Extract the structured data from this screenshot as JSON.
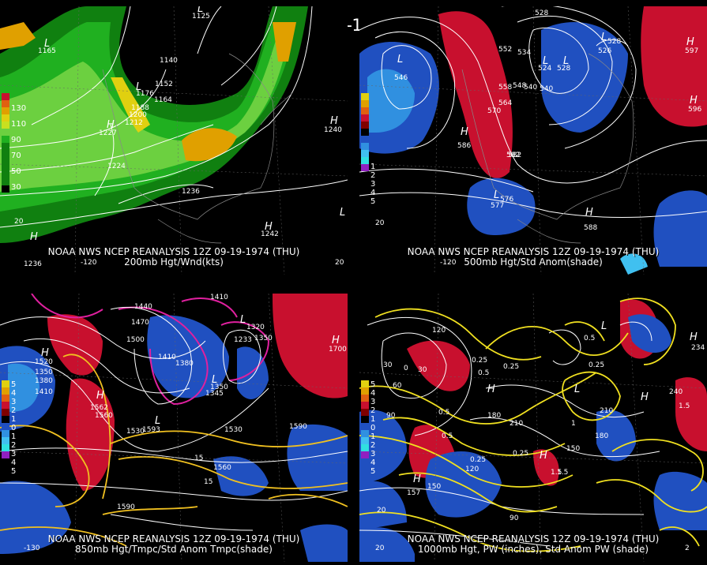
{
  "title": "12Z 09-19-1974 (THU)",
  "panels": [
    {
      "id": "p1",
      "caption1": "NOAA NWS NCEP REANALYSIS 12Z 09-19-1974 (THU)",
      "caption2": "200mb Hgt/Wnd(kts)",
      "legend_colors": [
        "#c8102e",
        "#e06010",
        "#e0a000",
        "#e0d010",
        "#c8e020",
        "#6cd040",
        "#20b020",
        "#108010"
      ],
      "legend_labels": [
        "130",
        "110",
        "90",
        "70",
        "50",
        "30"
      ],
      "contour_labels": [
        "1125",
        "1165",
        "1140",
        "1152",
        "1176",
        "1164",
        "1188",
        "1200",
        "1212",
        "1227",
        "1224",
        "1236",
        "1240",
        "1242",
        "1236",
        "20",
        "-120",
        "20"
      ],
      "highs_lows": [
        "L",
        "L",
        "L",
        "H",
        "H",
        "H",
        "L",
        "H"
      ]
    },
    {
      "id": "p2",
      "caption1": "NOAA NWS NCEP REANALYSIS 12Z 09-19-1974 (THU)",
      "caption2": "500mb Hgt/Std Anom(shade)",
      "legend_colors": [
        "#e0d010",
        "#e0a000",
        "#e06010",
        "#c8102e",
        "#800000",
        "#000000",
        "#2050c0",
        "#3090e0",
        "#40c0f0",
        "#30e0e0",
        "#9020c0"
      ],
      "legend_labels": [
        "1",
        "2",
        "3",
        "4",
        "5"
      ],
      "contour_labels": [
        "528",
        "552",
        "534",
        "528",
        "526",
        "524",
        "528",
        "540",
        "546",
        "558",
        "548",
        "540",
        "564",
        "570",
        "582",
        "586",
        "597",
        "596",
        "576",
        "577",
        "588",
        "582",
        "20",
        "-120"
      ],
      "highs_lows": [
        "L",
        "L",
        "L",
        "L",
        "H",
        "H",
        "H",
        "L",
        "H"
      ]
    },
    {
      "id": "p3",
      "caption1": "NOAA NWS NCEP REANALYSIS 12Z 09-19-1974 (THU)",
      "caption2": "850mb Hgt/Tmpc/Std Anom Tmpc(shade)",
      "legend_colors": [
        "#e0d010",
        "#e0a000",
        "#e06010",
        "#c8102e",
        "#800000",
        "#000000",
        "#2050c0",
        "#3090e0",
        "#40c0f0",
        "#30e0e0",
        "#9020c0"
      ],
      "legend_labels": [
        "5",
        "4",
        "3",
        "2",
        "1",
        "0",
        "1",
        "2",
        "3",
        "4",
        "5"
      ],
      "contour_labels": [
        "1410",
        "1440",
        "1470",
        "1500",
        "1410",
        "1380",
        "1320",
        "1350",
        "1233",
        "1350",
        "1345",
        "1700",
        "1520",
        "1350",
        "1380",
        "1410",
        "1560",
        "1562",
        "1530",
        "1593",
        "1530",
        "1590",
        "1560",
        "15",
        "15",
        "1590",
        "-130"
      ],
      "highs_lows": [
        "H",
        "L",
        "H",
        "L",
        "L",
        "H"
      ]
    },
    {
      "id": "p4",
      "caption1": "NOAA NWS NCEP REANALYSIS 12Z 09-19-1974 (THU)",
      "caption2": "1000mb Hgt, PW (inches), Std Anom PW (shade)",
      "legend_colors": [
        "#e0d010",
        "#e0a000",
        "#e06010",
        "#c8102e",
        "#800000",
        "#000000",
        "#2050c0",
        "#3090e0",
        "#40c0f0",
        "#30e0e0",
        "#9020c0"
      ],
      "legend_labels": [
        "5",
        "4",
        "3",
        "2",
        "1",
        "0",
        "1",
        "2",
        "3",
        "4",
        "5"
      ],
      "contour_labels": [
        "120",
        "30",
        "0",
        "30",
        "60",
        "90",
        "0.25",
        "0.25",
        "0.5",
        "0.5",
        "1",
        "180",
        "210",
        "0.5",
        "150",
        "0.25",
        "0.25",
        "1.5",
        "120",
        "150",
        "157",
        "90",
        "20",
        "240",
        "234",
        "1.5",
        "1.5",
        "2",
        "180",
        "210",
        "0.5",
        "0.25",
        "20"
      ],
      "highs_lows": [
        "H",
        "H",
        "L",
        "L",
        "H",
        "H",
        "H"
      ]
    }
  ]
}
